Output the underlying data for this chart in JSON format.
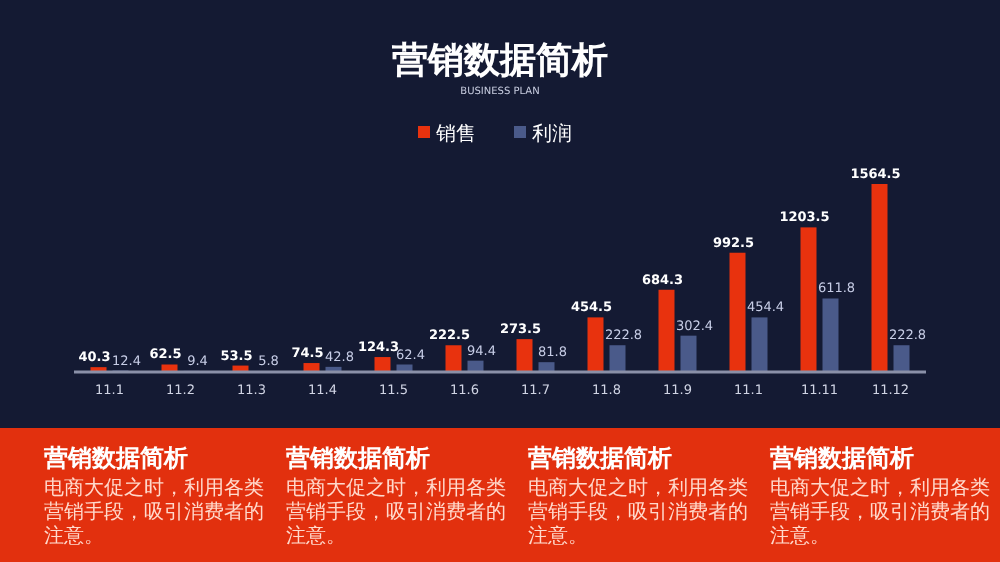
{
  "chart_data": {
    "type": "bar",
    "title": "营销数据简析",
    "subtitle": "BUSINESS PLAN",
    "categories": [
      "11.1",
      "11.2",
      "11.3",
      "11.4",
      "11.5",
      "11.6",
      "11.7",
      "11.8",
      "11.9",
      "11.1",
      "11.11",
      "11.12"
    ],
    "series": [
      {
        "name": "销售",
        "color": "#e8320e",
        "values": [
          40.3,
          62.5,
          53.5,
          74.5,
          124.3,
          222.5,
          273.5,
          454.5,
          684.3,
          992.5,
          1203.5,
          1564.5
        ]
      },
      {
        "name": "利润",
        "color": "#4a5a8a",
        "values": [
          12.4,
          9.4,
          5.8,
          42.8,
          62.4,
          94.4,
          81.8,
          222.8,
          302.4,
          454.4,
          611.8,
          222.8
        ]
      }
    ],
    "data_labels": true,
    "legend": "top",
    "annotations": [
      "营销数据简析",
      "电商大促之时，利用各类营销手段，吸引消费者的注意。",
      "营销数据简析",
      "电商大促之时，利用各类营销手段，吸引消费者的注意。",
      "营销数据简析",
      "电商大促之时，利用各类营销手段，吸引消费者的注意。",
      "营销数据简析",
      "电商大促之时，利用各类营销手段，吸引消费者的注意。"
    ]
  }
}
